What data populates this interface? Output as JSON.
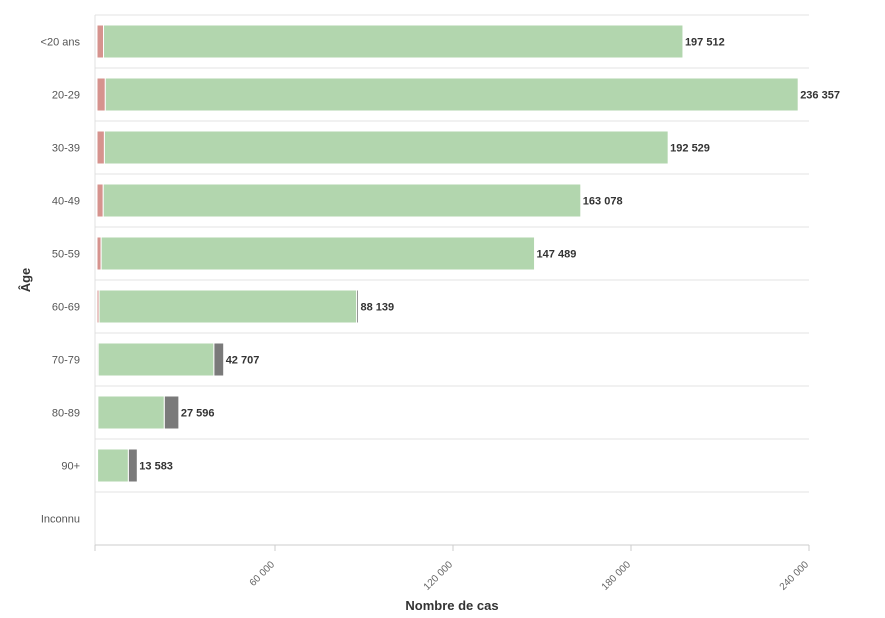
{
  "chart_data": {
    "type": "bar",
    "orientation": "horizontal",
    "stacked": true,
    "xlabel": "Nombre de cas",
    "ylabel": "Âge",
    "xlim": [
      0,
      240000
    ],
    "x_ticks": [
      60000,
      120000,
      180000,
      240000
    ],
    "x_tick_labels": [
      "60 000",
      "120 000",
      "180 000",
      "240 000"
    ],
    "categories": [
      "<20 ans",
      "20-29",
      "30-39",
      "40-49",
      "50-59",
      "60-69",
      "70-79",
      "80-89",
      "90+",
      "Inconnu"
    ],
    "series": [
      {
        "color": "#d6938e",
        "values": [
          2200,
          2800,
          2500,
          2100,
          1400,
          700,
          400,
          300,
          200,
          0
        ]
      },
      {
        "color": "#b2d6ae",
        "values": [
          195312,
          233557,
          190029,
          160978,
          146089,
          86839,
          39007,
          22396,
          10383,
          0
        ]
      },
      {
        "color": "#7a7a7a",
        "values": [
          0,
          0,
          0,
          0,
          0,
          600,
          3300,
          4900,
          3000,
          0
        ]
      }
    ],
    "totals": [
      197512,
      236357,
      192529,
      163078,
      147489,
      88139,
      42707,
      27596,
      13583,
      null
    ],
    "total_labels": [
      "197 512",
      "236 357",
      "192 529",
      "163 078",
      "147 489",
      "88 139",
      "42 707",
      "27 596",
      "13 583",
      ""
    ],
    "grid": {
      "horizontal_separators": true,
      "vertical": false
    },
    "legend": "none"
  }
}
